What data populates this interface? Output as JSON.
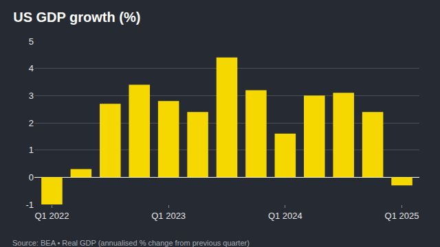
{
  "chart_data": {
    "type": "bar",
    "title": "US GDP growth (%)",
    "source": "Source: BEA • Real GDP (annualised % change from previous quarter)",
    "categories": [
      "Q1 2022",
      null,
      null,
      null,
      "Q1 2023",
      null,
      null,
      null,
      "Q1 2024",
      null,
      null,
      null,
      "Q1 2025"
    ],
    "values": [
      -1.0,
      0.3,
      2.7,
      3.4,
      2.8,
      2.4,
      4.4,
      3.2,
      1.6,
      3.0,
      3.1,
      2.4,
      -0.3
    ],
    "color": "#f5d800",
    "ylim": [
      -1,
      5
    ],
    "yticks": [
      -1,
      0,
      1,
      2,
      3,
      4,
      5
    ],
    "grid": true
  }
}
